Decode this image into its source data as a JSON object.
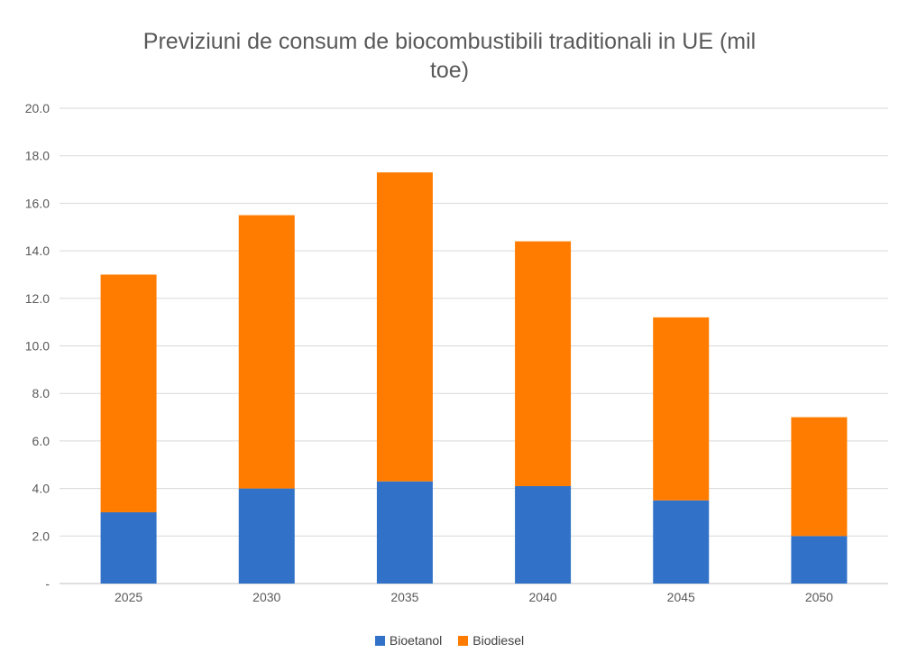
{
  "chart_data": {
    "type": "bar",
    "stacked": true,
    "title": "Previziuni de consum de biocombustibili traditionali in  UE (mil toe)",
    "title_lines": [
      "Previziuni de consum de biocombustibili traditionali in  UE (mil",
      "toe)"
    ],
    "categories": [
      "2025",
      "2030",
      "2035",
      "2040",
      "2045",
      "2050"
    ],
    "series": [
      {
        "name": "Bioetanol",
        "color": "#3172c8",
        "values": [
          3.0,
          4.0,
          4.3,
          4.1,
          3.5,
          2.0
        ]
      },
      {
        "name": "Biodiesel",
        "color": "#ff7c00",
        "values": [
          10.0,
          11.5,
          13.0,
          10.3,
          7.7,
          5.0
        ]
      }
    ],
    "ylim": [
      0,
      20
    ],
    "yticks": [
      0,
      2,
      4,
      6,
      8,
      10,
      12,
      14,
      16,
      18,
      20
    ],
    "ytick_labels": [
      "-",
      "2.0",
      "4.0",
      "6.0",
      "8.0",
      "10.0",
      "12.0",
      "14.0",
      "16.0",
      "18.0",
      "20.0"
    ],
    "xlabel": "",
    "ylabel": "",
    "grid": true,
    "legend": "bottom"
  }
}
